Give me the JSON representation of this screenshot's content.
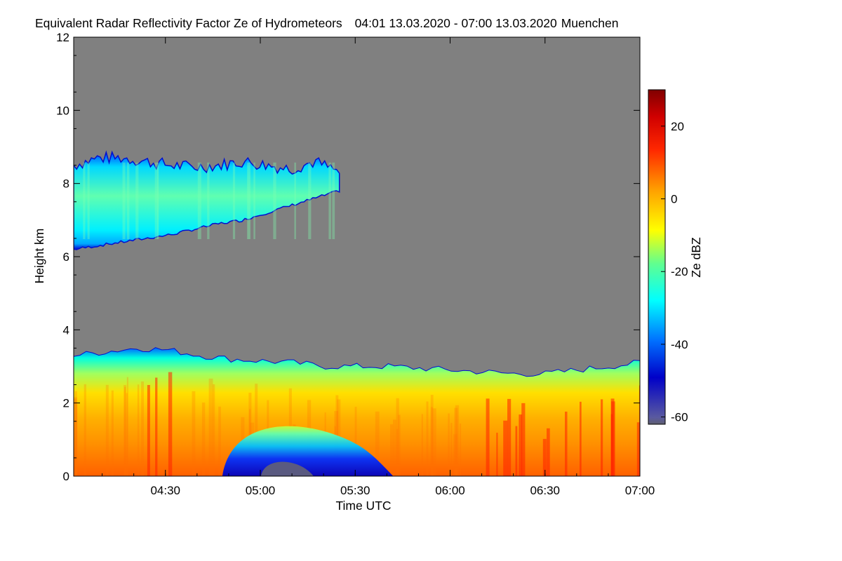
{
  "chart_data": {
    "type": "heatmap",
    "title": "Equivalent Radar Reflectivity Factor Ze of Hydrometeors",
    "time_range_label": "04:01 13.03.2020 - 07:00 13.03.2020",
    "location": "Muenchen",
    "xlabel": "Time UTC",
    "ylabel": "Height km",
    "x_range": [
      "04:01",
      "07:00"
    ],
    "x_ticks": [
      "04:30",
      "05:00",
      "05:30",
      "06:00",
      "06:30",
      "07:00"
    ],
    "ylim": [
      0,
      12
    ],
    "y_ticks": [
      0,
      2,
      4,
      6,
      8,
      10,
      12
    ],
    "colorbar": {
      "label": "Ze dBZ",
      "range": [
        -62,
        30
      ],
      "ticks": [
        -60,
        -40,
        -20,
        0,
        20
      ]
    },
    "background_color": "#808080",
    "layers": [
      {
        "name": "",
        "x_start": "04:01",
        "x_end": "05:25",
        "base_km": [
          6.2,
          6.3,
          6.4,
          6.5,
          6.6,
          6.75,
          6.9,
          7.0,
          7.2,
          7.4,
          7.6,
          7.8
        ],
        "top_km": [
          8.5,
          8.7,
          8.7,
          8.6,
          8.5,
          8.45,
          8.5,
          8.6,
          8.5,
          8.4,
          8.6,
          8.3
        ],
        "ze_dbz_typical": -24
      },
      {
        "name": "",
        "x_start": "04:01",
        "x_end": "07:00",
        "top_km": [
          3.3,
          3.4,
          3.5,
          3.45,
          3.3,
          3.2,
          3.15,
          3.1,
          3.0,
          3.0,
          3.0,
          2.95,
          2.9,
          2.85,
          2.8,
          2.8,
          2.9,
          3.0,
          3.1
        ],
        "ze_dbz_typical": 5
      }
    ]
  }
}
